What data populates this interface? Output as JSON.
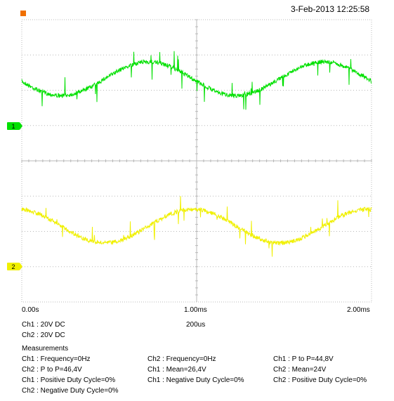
{
  "header": {
    "timestamp": "3-Feb-2013 12:25:58"
  },
  "channels": [
    {
      "marker": "1",
      "color": "#00e000",
      "marker_fill": "#00e000"
    },
    {
      "marker": "2",
      "color": "#f0f000",
      "marker_fill": "#f0f000"
    }
  ],
  "trigger_marker_color": "#f07000",
  "grid_color": "#b8b8b8",
  "time_axis": {
    "start": "0.00s",
    "mid": "1.00ms",
    "end": "2.00ms"
  },
  "settings": {
    "ch1": "Ch1 : 20V  DC",
    "ch2": "Ch2 : 20V  DC",
    "timebase": "200us"
  },
  "measurements": {
    "title": "Measurements",
    "rows": [
      [
        "Ch1 : Frequency=0Hz",
        "Ch2 : Frequency=0Hz",
        "Ch1 : P to P=44,8V"
      ],
      [
        "Ch2 : P to P=46,4V",
        "Ch1 : Mean=26,4V",
        "Ch2 : Mean=24V"
      ],
      [
        "Ch1 : Positive Duty Cycle=0%",
        "Ch1 : Negative Duty Cycle=0%",
        "Ch2 : Positive Duty Cycle=0%"
      ],
      [
        "Ch2 : Negative Duty Cycle=0%",
        "",
        ""
      ]
    ]
  }
}
